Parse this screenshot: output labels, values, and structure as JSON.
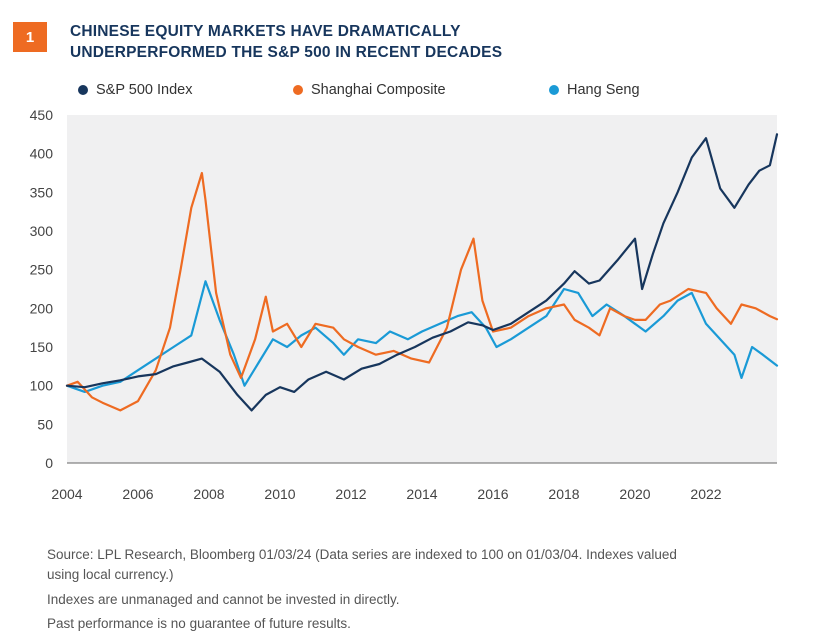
{
  "badge": "1",
  "title": {
    "line1": "CHINESE EQUITY MARKETS HAVE DRAMATICALLY",
    "line2": "UNDERPERFORMED THE S&P 500 IN RECENT DECADES"
  },
  "colors": {
    "accent": "#ee6b22",
    "title": "#17365d",
    "plot_bg": "#f0f0f1"
  },
  "notes": {
    "source_line1": "Source: LPL Research, Bloomberg  01/03/24  (Data series are indexed to 100 on 01/03/04. Indexes valued",
    "source_line2": "using local currency.)",
    "disclaimer1": "Indexes are unmanaged and cannot be invested in directly.",
    "disclaimer2": "Past performance is no guarantee of future results."
  },
  "chart_data": {
    "type": "line",
    "x_range": [
      2004,
      2024
    ],
    "ylim": [
      0,
      450
    ],
    "x_ticks": [
      2004,
      2006,
      2008,
      2010,
      2012,
      2014,
      2016,
      2018,
      2020,
      2022
    ],
    "x_tick_labels": [
      "2004",
      "2006",
      "2008",
      "2010",
      "2012",
      "2014",
      "2016",
      "2018",
      "2020",
      "2022"
    ],
    "y_ticks": [
      0,
      50,
      100,
      150,
      200,
      250,
      300,
      350,
      400,
      450
    ],
    "y_tick_labels": [
      "0",
      "50",
      "100",
      "150",
      "200",
      "250",
      "300",
      "350",
      "400",
      "450"
    ],
    "grid": false,
    "legend_position": "top",
    "series": [
      {
        "name": "S&P 500 Index",
        "color": "#17365d",
        "x": [
          2004.0,
          2004.5,
          2005.0,
          2005.5,
          2006.0,
          2006.5,
          2007.0,
          2007.4,
          2007.8,
          2008.3,
          2008.8,
          2009.2,
          2009.6,
          2010.0,
          2010.4,
          2010.8,
          2011.3,
          2011.8,
          2012.3,
          2012.8,
          2013.3,
          2013.8,
          2014.3,
          2014.8,
          2015.3,
          2015.7,
          2016.0,
          2016.5,
          2017.0,
          2017.5,
          2018.0,
          2018.3,
          2018.7,
          2019.0,
          2019.5,
          2020.0,
          2020.2,
          2020.5,
          2020.8,
          2021.2,
          2021.6,
          2022.0,
          2022.4,
          2022.8,
          2023.2,
          2023.5,
          2023.8,
          2024.0
        ],
        "values": [
          100,
          98,
          103,
          107,
          112,
          115,
          125,
          130,
          135,
          118,
          88,
          68,
          88,
          98,
          92,
          108,
          118,
          108,
          122,
          128,
          140,
          150,
          162,
          170,
          182,
          178,
          172,
          180,
          195,
          210,
          232,
          248,
          232,
          236,
          262,
          290,
          225,
          270,
          310,
          350,
          395,
          420,
          355,
          330,
          360,
          378,
          385,
          425
        ]
      },
      {
        "name": "Shanghai Composite",
        "color": "#ee6b22",
        "x": [
          2004.0,
          2004.3,
          2004.7,
          2005.0,
          2005.5,
          2006.0,
          2006.5,
          2006.9,
          2007.2,
          2007.5,
          2007.8,
          2007.9,
          2008.2,
          2008.6,
          2008.9,
          2009.3,
          2009.6,
          2009.8,
          2010.2,
          2010.6,
          2011.0,
          2011.5,
          2011.8,
          2012.2,
          2012.7,
          2013.2,
          2013.7,
          2014.2,
          2014.7,
          2015.1,
          2015.45,
          2015.7,
          2016.0,
          2016.5,
          2017.0,
          2017.5,
          2018.0,
          2018.3,
          2018.7,
          2019.0,
          2019.3,
          2019.7,
          2020.0,
          2020.3,
          2020.7,
          2021.0,
          2021.5,
          2022.0,
          2022.3,
          2022.7,
          2023.0,
          2023.4,
          2023.8,
          2024.0
        ],
        "values": [
          100,
          105,
          85,
          78,
          68,
          80,
          120,
          175,
          250,
          330,
          375,
          340,
          220,
          140,
          110,
          160,
          215,
          170,
          180,
          150,
          180,
          175,
          160,
          150,
          140,
          145,
          135,
          130,
          175,
          250,
          290,
          210,
          170,
          175,
          190,
          200,
          205,
          185,
          175,
          165,
          200,
          190,
          185,
          185,
          205,
          210,
          225,
          220,
          200,
          180,
          205,
          200,
          190,
          186
        ]
      },
      {
        "name": "Hang Seng",
        "color": "#1a9ad6",
        "x": [
          2004.0,
          2004.5,
          2005.0,
          2005.5,
          2006.0,
          2006.5,
          2007.0,
          2007.5,
          2007.9,
          2008.3,
          2008.7,
          2009.0,
          2009.4,
          2009.8,
          2010.2,
          2010.6,
          2011.0,
          2011.5,
          2011.8,
          2012.2,
          2012.7,
          2013.1,
          2013.6,
          2014.0,
          2014.5,
          2015.0,
          2015.4,
          2015.8,
          2016.1,
          2016.5,
          2017.0,
          2017.5,
          2018.0,
          2018.4,
          2018.8,
          2019.2,
          2019.7,
          2020.0,
          2020.3,
          2020.8,
          2021.2,
          2021.6,
          2022.0,
          2022.4,
          2022.8,
          2023.0,
          2023.3,
          2023.6,
          2024.0
        ],
        "values": [
          100,
          92,
          100,
          105,
          120,
          135,
          150,
          165,
          235,
          185,
          140,
          100,
          130,
          160,
          150,
          165,
          175,
          155,
          140,
          160,
          155,
          170,
          160,
          170,
          180,
          190,
          195,
          175,
          150,
          160,
          175,
          190,
          225,
          220,
          190,
          205,
          190,
          180,
          170,
          190,
          210,
          220,
          180,
          160,
          140,
          110,
          150,
          140,
          126
        ]
      }
    ]
  }
}
